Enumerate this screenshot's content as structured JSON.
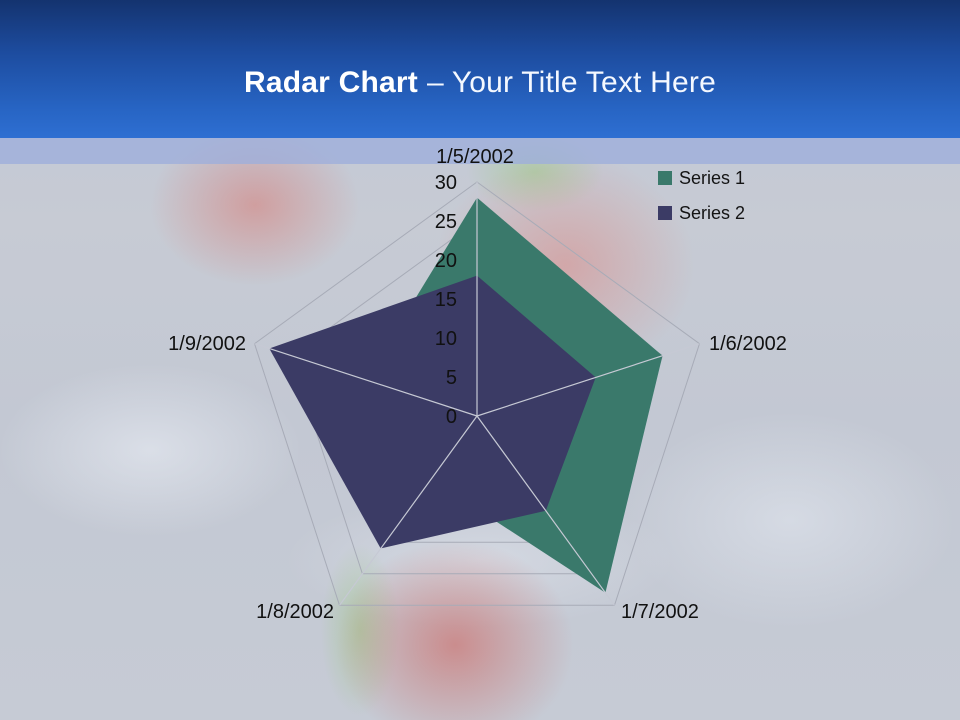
{
  "slide": {
    "title_bold": "Radar Chart",
    "title_rest": "– Your Title Text Here"
  },
  "chart_data": {
    "type": "radar",
    "categories": [
      "1/5/2002",
      "1/6/2002",
      "1/7/2002",
      "1/8/2002",
      "1/9/2002"
    ],
    "series": [
      {
        "name": "Series 1",
        "color": "#3A796B",
        "values": [
          28,
          25,
          28,
          10,
          15
        ]
      },
      {
        "name": "Series 2",
        "color": "#3B3B65",
        "values": [
          18,
          16,
          15,
          21,
          28
        ]
      }
    ],
    "rlim": [
      0,
      30
    ],
    "tick_interval": 5,
    "ticks": [
      0,
      5,
      10,
      15,
      20,
      25,
      30
    ],
    "grid": "pentagonal rings every 5 units, hidden behind opaque series fills; radial axes drawn over fills",
    "legend_position": "top-right",
    "colors": {
      "ring_line": "#A7ABB7",
      "axis_line": "#C6C9D4",
      "label_text": "#111111"
    }
  }
}
